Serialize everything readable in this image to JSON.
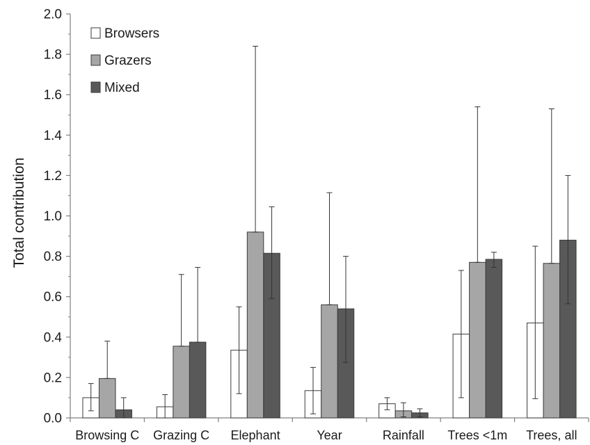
{
  "chart_data": {
    "type": "bar",
    "ylabel": "Total contribution",
    "ylim": [
      0,
      2.0
    ],
    "yticks": [
      "0.0",
      "0.2",
      "0.4",
      "0.6",
      "0.8",
      "1.0",
      "1.2",
      "1.4",
      "1.6",
      "1.8",
      "2.0"
    ],
    "categories": [
      "Browsing C",
      "Grazing C",
      "Elephant",
      "Year",
      "Rainfall",
      "Trees <1m",
      "Trees, all"
    ],
    "series": [
      {
        "name": "Browsers",
        "color": "#ffffff",
        "values": [
          0.1,
          0.055,
          0.335,
          0.135,
          0.07,
          0.415,
          0.47
        ],
        "err_low": [
          0.035,
          0.0,
          0.12,
          0.02,
          0.04,
          0.1,
          0.095
        ],
        "err_high": [
          0.17,
          0.115,
          0.55,
          0.25,
          0.1,
          0.73,
          0.85
        ]
      },
      {
        "name": "Grazers",
        "color": "#a6a6a6",
        "values": [
          0.195,
          0.355,
          0.92,
          0.56,
          0.035,
          0.77,
          0.765
        ],
        "err_low": [
          0.195,
          0.355,
          0.92,
          0.56,
          0.005,
          0.77,
          0.765
        ],
        "err_high": [
          0.38,
          0.71,
          1.84,
          1.115,
          0.075,
          1.54,
          1.53
        ]
      },
      {
        "name": "Mixed",
        "color": "#595959",
        "values": [
          0.04,
          0.375,
          0.815,
          0.54,
          0.025,
          0.785,
          0.88
        ],
        "err_low": [
          0.0,
          0.375,
          0.59,
          0.275,
          0.005,
          0.745,
          0.565
        ],
        "err_high": [
          0.1,
          0.745,
          1.045,
          0.8,
          0.045,
          0.82,
          1.2
        ]
      }
    ],
    "legend_position": "top-left",
    "grid": false
  }
}
